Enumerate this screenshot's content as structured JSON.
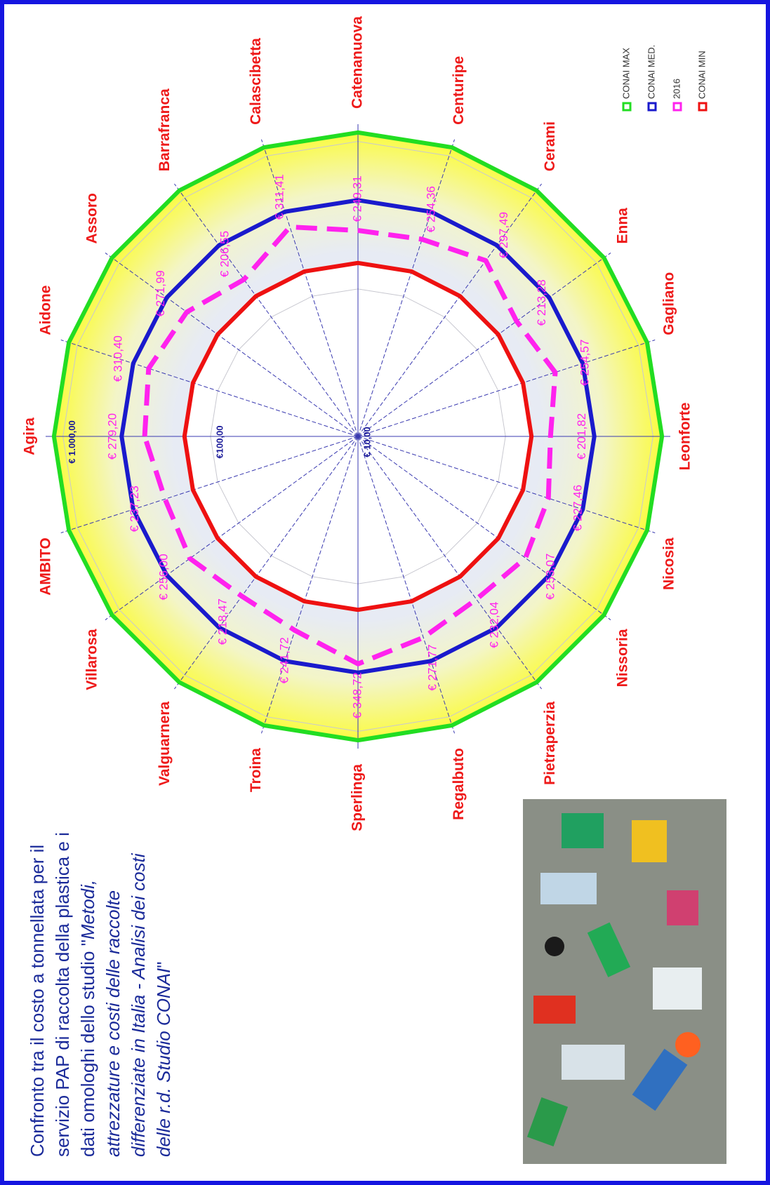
{
  "chart_data": {
    "type": "radar",
    "title_lines": [
      [
        {
          "text": "Confronto tra il costo a tonnellata per il",
          "italic": false
        }
      ],
      [
        {
          "text": "servizio PAP di raccolta  della plastica e i",
          "italic": false
        }
      ],
      [
        {
          "text": "dati omologhi dello studio \"",
          "italic": false
        },
        {
          "text": "Metodi,",
          "italic": true
        }
      ],
      [
        {
          "text": "attrezzature e costi delle raccolte",
          "italic": true
        }
      ],
      [
        {
          "text": "differenziate in Italia - Analisi dei costi",
          "italic": true
        }
      ],
      [
        {
          "text": "delle r.d.  Studio CONAI",
          "italic": true
        },
        {
          "text": "\"",
          "italic": false
        }
      ]
    ],
    "categories": [
      "Agira",
      "Aidone",
      "Assoro",
      "Barrafranca",
      "Calascibetta",
      "Catenanuova",
      "Centuripe",
      "Cerami",
      "Enna",
      "Gagliano",
      "Leonforte",
      "Nicosia",
      "Nissoria",
      "Pietraperzia",
      "Regalbuto",
      "Sperlinga",
      "Troina",
      "Valguarnera",
      "Villarosa",
      "AMBITO"
    ],
    "log_scale": true,
    "ylim": [
      10,
      1200
    ],
    "yticks": [
      {
        "value": 10,
        "label": "€ 10,00"
      },
      {
        "value": 100,
        "label": "€100,00"
      },
      {
        "value": 1000,
        "label": "€ 1.000,00"
      }
    ],
    "series": [
      {
        "name": "CONAI MAX",
        "color": "#22dd22",
        "values": [
          1150,
          1150,
          1150,
          1150,
          1150,
          1150,
          1150,
          1150,
          1150,
          1150,
          1150,
          1150,
          1150,
          1150,
          1150,
          1150,
          1150,
          1150,
          1150,
          1150
        ]
      },
      {
        "name": "CONAI MED.",
        "color": "#1a1acc",
        "values": [
          400,
          400,
          400,
          400,
          400,
          400,
          400,
          400,
          400,
          400,
          400,
          400,
          400,
          400,
          400,
          400,
          400,
          400,
          400,
          400
        ]
      },
      {
        "name": "2016",
        "color": "#ff22ee",
        "dashed": true,
        "values": [
          279.2,
          310.4,
          271.99,
          206.55,
          311.41,
          249.31,
          254.36,
          297.49,
          213.28,
          254.57,
          201.82,
          227.46,
          253.07,
          232.04,
          271.77,
          348.72,
          241.72,
          218.47,
          256,
          237.23
        ],
        "value_labels": [
          "€ 279,20",
          "€ 310,40",
          "€ 271,99",
          "€ 206,55",
          "€ 311,41",
          "€ 249,31",
          "€ 254,36",
          "€ 297,49",
          "€ 213,28",
          "€ 254,57",
          "€ 201,82",
          "€ 227,46",
          "€ 253,07",
          "€ 232,04",
          "€ 271,77",
          "€ 348,72",
          "€ 241,72",
          "€ 218,47",
          "€ 256,00",
          "€ 237,23"
        ]
      },
      {
        "name": "CONAI MIN",
        "color": "#ee1111",
        "values": [
          150,
          150,
          150,
          150,
          150,
          150,
          150,
          150,
          150,
          150,
          150,
          150,
          150,
          150,
          150,
          150,
          150,
          150,
          150,
          150
        ]
      }
    ]
  }
}
